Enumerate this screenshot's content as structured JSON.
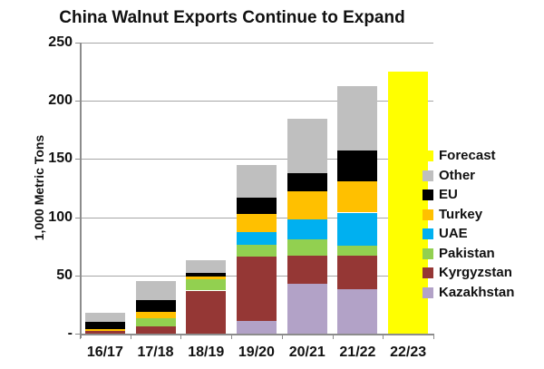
{
  "title": "China Walnut Exports Continue to Expand",
  "y_axis": {
    "label": "1,000 Metric Tons",
    "tick_values": [
      250,
      200,
      150,
      100,
      50,
      0
    ],
    "tick_labels": [
      "250",
      "200",
      "150",
      "100",
      "50",
      "-"
    ]
  },
  "legend": [
    {
      "label": "Forecast",
      "color": "#FFFF00"
    },
    {
      "label": "Other",
      "color": "#BFBFBF"
    },
    {
      "label": "EU",
      "color": "#000000"
    },
    {
      "label": "Turkey",
      "color": "#FFC000"
    },
    {
      "label": "UAE",
      "color": "#00B0F0"
    },
    {
      "label": "Pakistan",
      "color": "#92D050"
    },
    {
      "label": "Kyrgyzstan",
      "color": "#953735"
    },
    {
      "label": "Kazakhstan",
      "color": "#B2A2C7"
    }
  ],
  "chart_data": {
    "type": "bar",
    "stacked": true,
    "title": "China Walnut Exports Continue to Expand",
    "xlabel": "",
    "ylabel": "1,000 Metric Tons",
    "ylim": [
      0,
      250
    ],
    "grid": true,
    "legend_position": "right",
    "categories": [
      "16/17",
      "17/18",
      "18/19",
      "19/20",
      "20/21",
      "21/22",
      "22/23"
    ],
    "series": [
      {
        "name": "Kazakhstan",
        "color": "#B2A2C7",
        "values": [
          0,
          0,
          0,
          11,
          43,
          38,
          0
        ]
      },
      {
        "name": "Kyrgyzstan",
        "color": "#953735",
        "values": [
          2,
          6,
          37,
          55,
          24,
          29,
          0
        ]
      },
      {
        "name": "Pakistan",
        "color": "#92D050",
        "values": [
          0,
          7,
          10,
          10,
          14,
          9,
          0
        ]
      },
      {
        "name": "UAE",
        "color": "#00B0F0",
        "values": [
          0,
          0,
          0,
          11,
          17,
          28,
          0
        ]
      },
      {
        "name": "Turkey",
        "color": "#FFC000",
        "values": [
          2,
          6,
          2,
          16,
          24,
          27,
          0
        ]
      },
      {
        "name": "EU",
        "color": "#000000",
        "values": [
          6,
          10,
          3,
          14,
          16,
          26,
          0
        ]
      },
      {
        "name": "Other",
        "color": "#BFBFBF",
        "values": [
          8,
          16,
          11,
          28,
          47,
          56,
          0
        ]
      },
      {
        "name": "Forecast",
        "color": "#FFFF00",
        "values": [
          0,
          0,
          0,
          0,
          0,
          0,
          225
        ]
      }
    ],
    "totals": [
      18,
      45,
      63,
      145,
      185,
      213,
      225
    ]
  }
}
